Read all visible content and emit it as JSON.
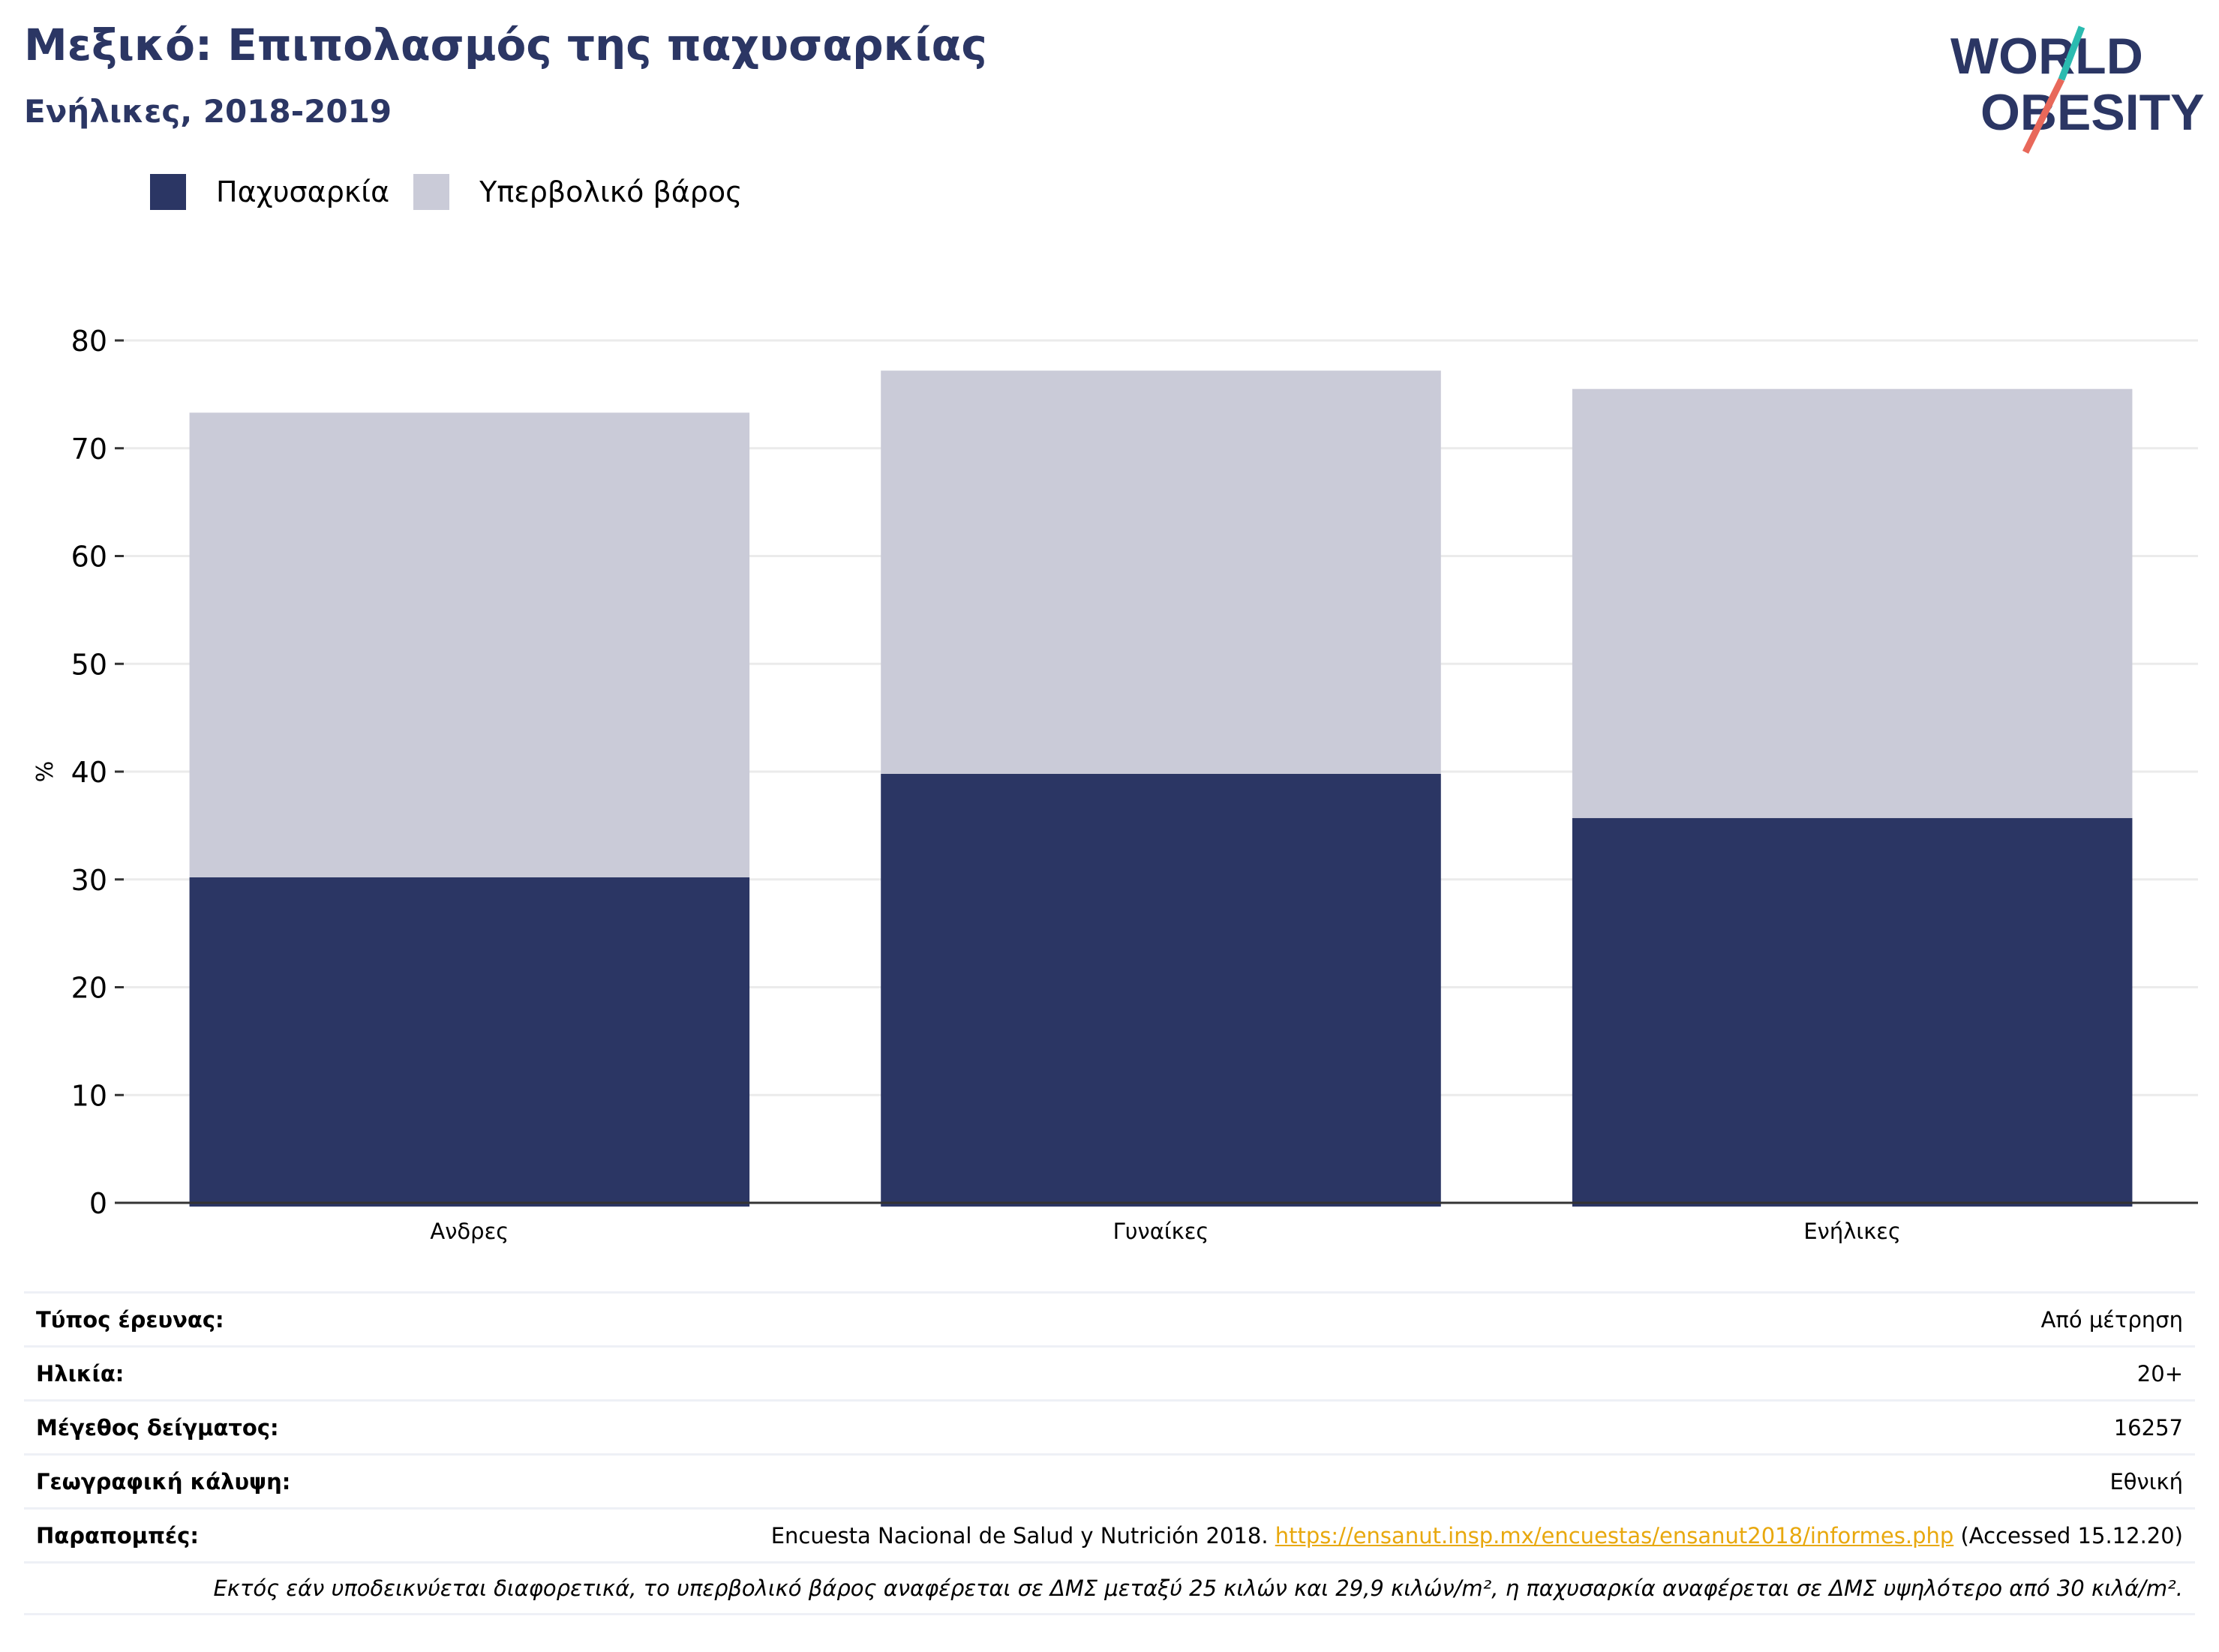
{
  "header": {
    "title": "Μεξικό: Επιπολασμός της παχυσαρκίας",
    "subtitle": "Ενήλικες, 2018-2019"
  },
  "logo": {
    "line1": "WORLD",
    "line2": "OBESITY"
  },
  "colors": {
    "obesity": "#2b3664",
    "overweight": "#cacbd8",
    "accent_teal": "#2bbbb0",
    "accent_coral": "#e8685a",
    "link": "#e8a80e"
  },
  "chart_data": {
    "type": "bar",
    "stacked": true,
    "categories": [
      "Ανδρες",
      "Γυναίκες",
      "Ενήλικες"
    ],
    "series": [
      {
        "name": "Παχυσαρκία",
        "values": [
          30.2,
          39.8,
          35.7
        ]
      },
      {
        "name": "Υπερβολικό βάρος",
        "values": [
          43.1,
          37.4,
          39.8
        ]
      }
    ],
    "ylabel": "%",
    "ylim": [
      0,
      80
    ],
    "yticks": [
      0,
      10,
      20,
      30,
      40,
      50,
      60,
      70,
      80
    ],
    "grid": true,
    "legend_position": "top-left"
  },
  "info": {
    "rows": [
      {
        "label": "Τύπος έρευνας:",
        "value": "Από μέτρηση"
      },
      {
        "label": "Ηλικία:",
        "value": "20+"
      },
      {
        "label": "Μέγεθος δείγματος:",
        "value": "16257"
      },
      {
        "label": "Γεωγραφική κάλυψη:",
        "value": "Εθνική"
      }
    ],
    "references_label": "Παραπομπές:",
    "references_text": "Encuesta Nacional de Salud y Nutrición 2018.",
    "references_link": "https://ensanut.insp.mx/encuestas/ensanut2018/informes.php",
    "references_accessed": "(Accessed 15.12.20)",
    "note": "Εκτός εάν υποδεικνύεται διαφορετικά, το υπερβολικό βάρος αναφέρεται σε ΔΜΣ μεταξύ 25 κιλών και 29,9 κιλών/m², η παχυσαρκία αναφέρεται σε ΔΜΣ υψηλότερο από 30 κιλά/m²."
  }
}
